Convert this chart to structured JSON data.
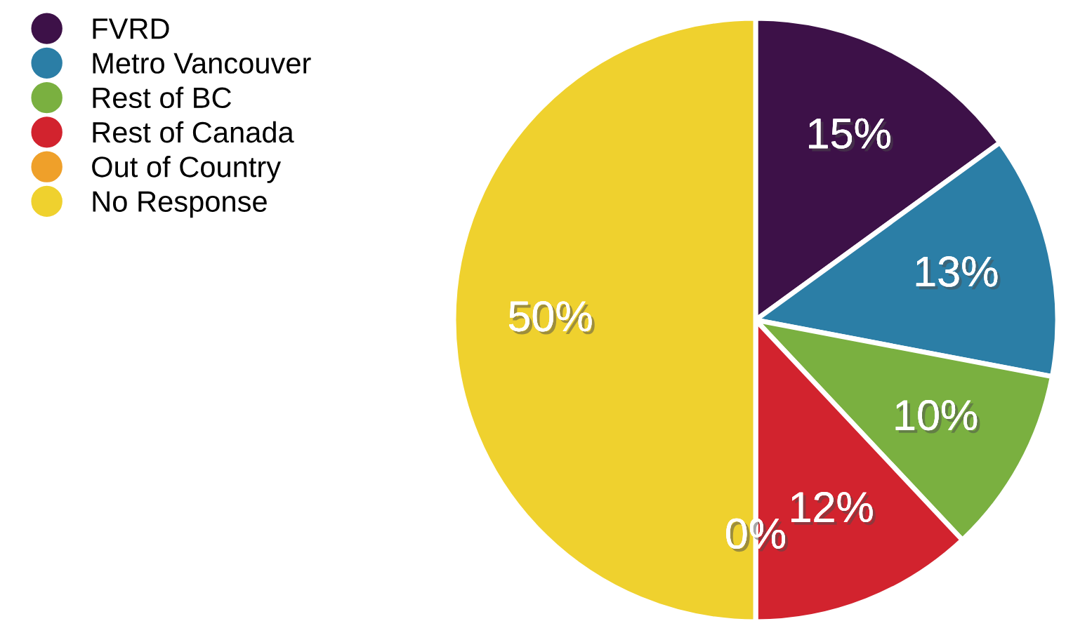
{
  "chart_data": {
    "type": "pie",
    "categories": [
      "FVRD",
      "Metro Vancouver",
      "Rest of BC",
      "Rest of Canada",
      "Out of Country",
      "No Response"
    ],
    "values": [
      15,
      13,
      10,
      12,
      0,
      50
    ],
    "colors": [
      "#3d1148",
      "#2b7ea6",
      "#7ab040",
      "#d2232e",
      "#efa02a",
      "#efd12e"
    ],
    "value_labels": [
      "15%",
      "13%",
      "10%",
      "12%",
      "0%",
      "50%"
    ],
    "legend": "top left"
  }
}
